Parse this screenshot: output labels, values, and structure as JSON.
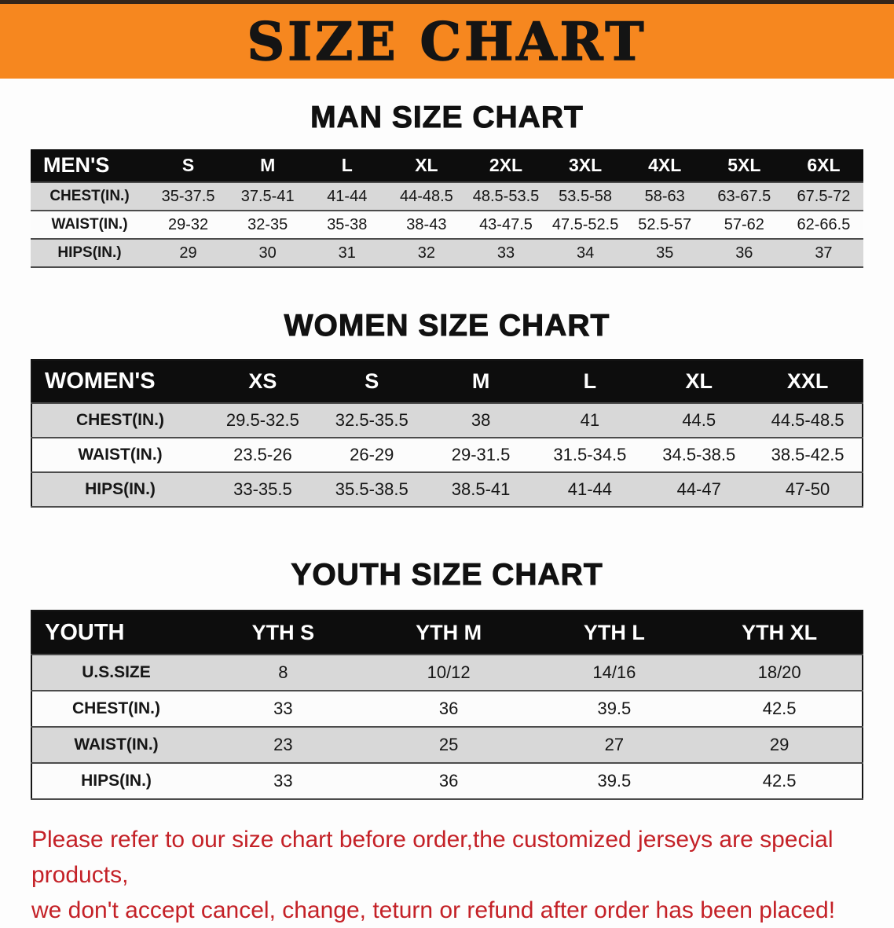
{
  "banner": {
    "title": "SIZE CHART"
  },
  "men": {
    "heading": "MAN SIZE CHART",
    "table": {
      "label": "MEN'S",
      "columns": [
        "S",
        "M",
        "L",
        "XL",
        "2XL",
        "3XL",
        "4XL",
        "5XL",
        "6XL"
      ],
      "rows": [
        {
          "label": "CHEST(IN.)",
          "shaded": true,
          "values": [
            "35-37.5",
            "37.5-41",
            "41-44",
            "44-48.5",
            "48.5-53.5",
            "53.5-58",
            "58-63",
            "63-67.5",
            "67.5-72"
          ]
        },
        {
          "label": "WAIST(IN.)",
          "shaded": false,
          "values": [
            "29-32",
            "32-35",
            "35-38",
            "38-43",
            "43-47.5",
            "47.5-52.5",
            "52.5-57",
            "57-62",
            "62-66.5"
          ]
        },
        {
          "label": "HIPS(IN.)",
          "shaded": true,
          "values": [
            "29",
            "30",
            "31",
            "32",
            "33",
            "34",
            "35",
            "36",
            "37"
          ]
        }
      ]
    }
  },
  "women": {
    "heading": "WOMEN SIZE CHART",
    "table": {
      "label": "WOMEN'S",
      "columns": [
        "XS",
        "S",
        "M",
        "L",
        "XL",
        "XXL"
      ],
      "rows": [
        {
          "label": "CHEST(IN.)",
          "shaded": true,
          "values": [
            "29.5-32.5",
            "32.5-35.5",
            "38",
            "41",
            "44.5",
            "44.5-48.5"
          ]
        },
        {
          "label": "WAIST(IN.)",
          "shaded": false,
          "values": [
            "23.5-26",
            "26-29",
            "29-31.5",
            "31.5-34.5",
            "34.5-38.5",
            "38.5-42.5"
          ]
        },
        {
          "label": "HIPS(IN.)",
          "shaded": true,
          "values": [
            "33-35.5",
            "35.5-38.5",
            "38.5-41",
            "41-44",
            "44-47",
            "47-50"
          ]
        }
      ]
    }
  },
  "youth": {
    "heading": "YOUTH SIZE CHART",
    "table": {
      "label": "YOUTH",
      "columns": [
        "YTH S",
        "YTH M",
        "YTH L",
        "YTH XL"
      ],
      "rows": [
        {
          "label": "U.S.SIZE",
          "shaded": true,
          "values": [
            "8",
            "10/12",
            "14/16",
            "18/20"
          ]
        },
        {
          "label": "CHEST(IN.)",
          "shaded": false,
          "values": [
            "33",
            "36",
            "39.5",
            "42.5"
          ]
        },
        {
          "label": "WAIST(IN.)",
          "shaded": true,
          "values": [
            "23",
            "25",
            "27",
            "29"
          ]
        },
        {
          "label": "HIPS(IN.)",
          "shaded": false,
          "values": [
            "33",
            "36",
            "39.5",
            "42.5"
          ]
        }
      ]
    }
  },
  "disclaimer": {
    "line1": "Please refer to our size chart before order,the customized jerseys are special products,",
    "line2": "we don't accept cancel, change, teturn or refund after order has been placed!"
  },
  "colors": {
    "banner_bg": "#f6871f",
    "header_bg": "#0d0d0d",
    "shaded_row": "#d8d8d8",
    "plain_row": "#fcfcfc",
    "disclaimer_text": "#c42127"
  }
}
